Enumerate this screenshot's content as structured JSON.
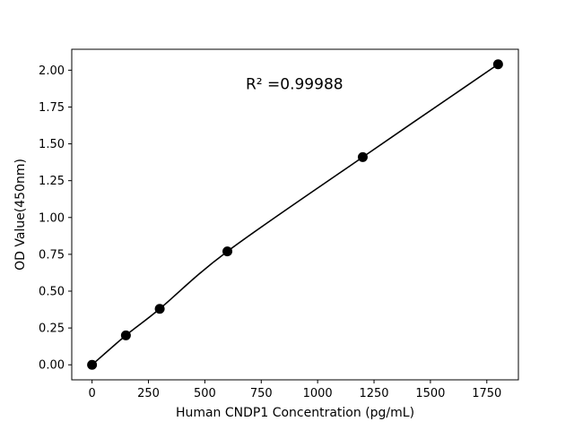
{
  "chart_data": {
    "type": "scatter",
    "series_name": "standard-curve",
    "title": "",
    "xlabel": "Human CNDP1 Concentration (pg/mL)",
    "ylabel": "OD Value(450nm)",
    "x": [
      0,
      150,
      300,
      600,
      1200,
      1800
    ],
    "y": [
      0.0,
      0.2,
      0.38,
      0.77,
      1.41,
      2.04
    ],
    "xlim": [
      -90,
      1890
    ],
    "ylim": [
      -0.102,
      2.142
    ],
    "xticks": [
      0,
      250,
      500,
      750,
      1000,
      1250,
      1500,
      1750
    ],
    "yticks": [
      0.0,
      0.25,
      0.5,
      0.75,
      1.0,
      1.25,
      1.5,
      1.75,
      2.0
    ],
    "grid": false,
    "legend": "none",
    "annotation": {
      "text": "R² =0.99988",
      "x": 900,
      "y": 1.87
    },
    "marker_color": "#000000",
    "line_color": "#000000",
    "background_color": "#ffffff"
  }
}
